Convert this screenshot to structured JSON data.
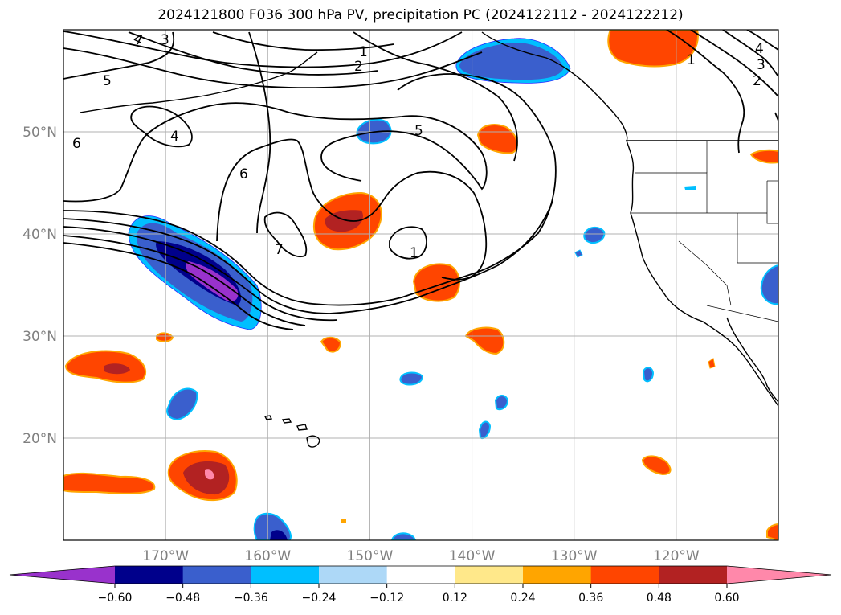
{
  "title": "2024121800 F036 300 hPa PV, precipitation PC (2024122112 - 2024122212)",
  "chart_data": {
    "type": "contour-map",
    "title": "2024121800 F036 300 hPa PV, precipitation PC (2024122112 - 2024122212)",
    "lon_ticks": [
      "170°W",
      "160°W",
      "150°W",
      "140°W",
      "130°W",
      "120°W"
    ],
    "lat_ticks": [
      "20°N",
      "30°N",
      "40°N",
      "50°N"
    ],
    "lon_range": [
      -180,
      -110
    ],
    "lat_range": [
      10,
      60
    ],
    "colorbar": {
      "ticks": [
        "−0.60",
        "−0.48",
        "−0.36",
        "−0.24",
        "−0.12",
        "0.12",
        "0.24",
        "0.36",
        "0.48",
        "0.60"
      ],
      "colors": [
        "#9932cc",
        "#00008b",
        "#3a5fcd",
        "#00bfff",
        "#add8f7",
        "#ffffff",
        "#ffe88a",
        "#ffa500",
        "#ff4500",
        "#b22222",
        "#ff88aa"
      ],
      "extend": "both"
    },
    "pv_contour_labels": [
      "1",
      "2",
      "3",
      "4",
      "5",
      "6",
      "7"
    ],
    "grid": true
  },
  "colors": {
    "pos_mid": "#ff4500",
    "pos_high": "#b22222",
    "pos_low": "#ffe88a",
    "neg_mid": "#3a5fcd",
    "neg_high": "#00008b",
    "neg_low": "#00bfff"
  }
}
